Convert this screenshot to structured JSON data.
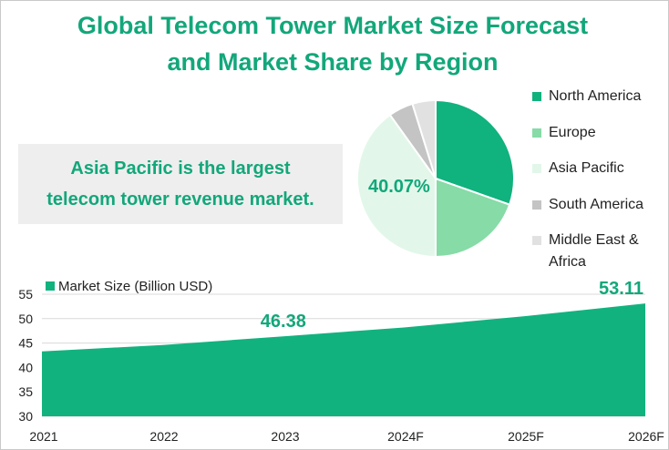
{
  "title_line1": "Global Telecom Tower Market Size Forecast",
  "title_line2": "and Market Share by Region",
  "callout_line1": "Asia Pacific is the largest",
  "callout_line2": "telecom tower revenue market.",
  "colors": {
    "accent": "#12b27f",
    "title": "#12a77a"
  },
  "chart_data": [
    {
      "type": "pie",
      "slices": [
        {
          "label": "North America",
          "value": 30.4,
          "color": "#10b27e"
        },
        {
          "label": "Europe",
          "value": 19.6,
          "color": "#86dba7"
        },
        {
          "label": "Asia Pacific",
          "value": 40.07,
          "color": "#e2f7ea"
        },
        {
          "label": "South America",
          "value": 5.1,
          "color": "#c4c4c4"
        },
        {
          "label": "Middle East & Africa",
          "value": 4.8,
          "color": "#e1e1e1"
        }
      ],
      "data_labels": [
        {
          "slice": "Asia Pacific",
          "text": "40.07%"
        }
      ],
      "legend_position": "right"
    },
    {
      "type": "area",
      "categories": [
        "2021",
        "2022",
        "2023",
        "2024F",
        "2025F",
        "2026F"
      ],
      "series": [
        {
          "name": "Market Size (Billion USD)",
          "values": [
            43.3,
            44.6,
            46.38,
            48.2,
            50.5,
            53.11
          ],
          "color": "#12b27f"
        }
      ],
      "ylim": [
        30,
        55
      ],
      "yticks": [
        30,
        35,
        40,
        45,
        50,
        55
      ],
      "grid": true,
      "legend_position": "top-left",
      "data_labels": [
        {
          "category": "2023",
          "text": "46.38"
        },
        {
          "category": "2026F",
          "text": "53.11"
        }
      ]
    }
  ]
}
